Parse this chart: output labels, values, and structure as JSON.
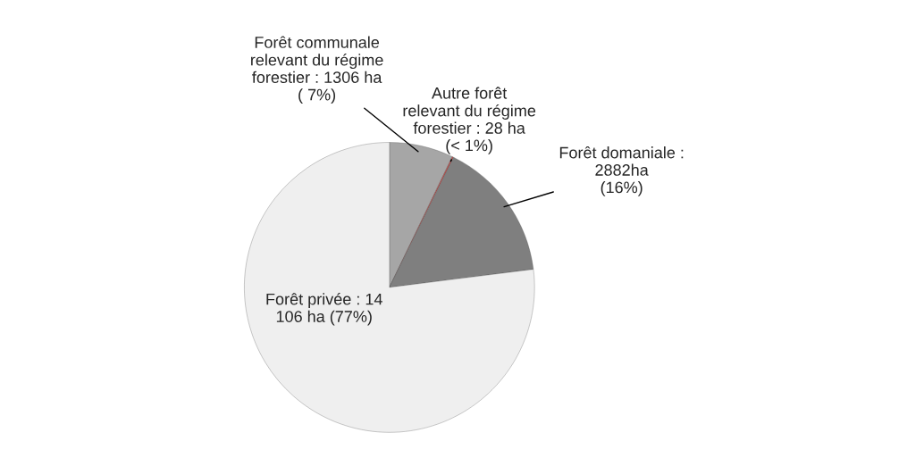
{
  "chart_data": {
    "type": "pie",
    "categories": [
      "Forêt communale\nrelevant du régime\nforestier : 1306 ha\n( 7%)",
      "Autre forêt\nrelevant du régime\nforestier : 28 ha\n(< 1%)",
      "Forêt domaniale :\n2882ha\n(16%)",
      "Forêt privée : 14\n106 ha (77%)"
    ],
    "values": [
      1306,
      28,
      2882,
      14106
    ],
    "colors": [
      "#a6a6a6",
      "#c0504d",
      "#7f7f7f",
      "#efefef"
    ]
  }
}
